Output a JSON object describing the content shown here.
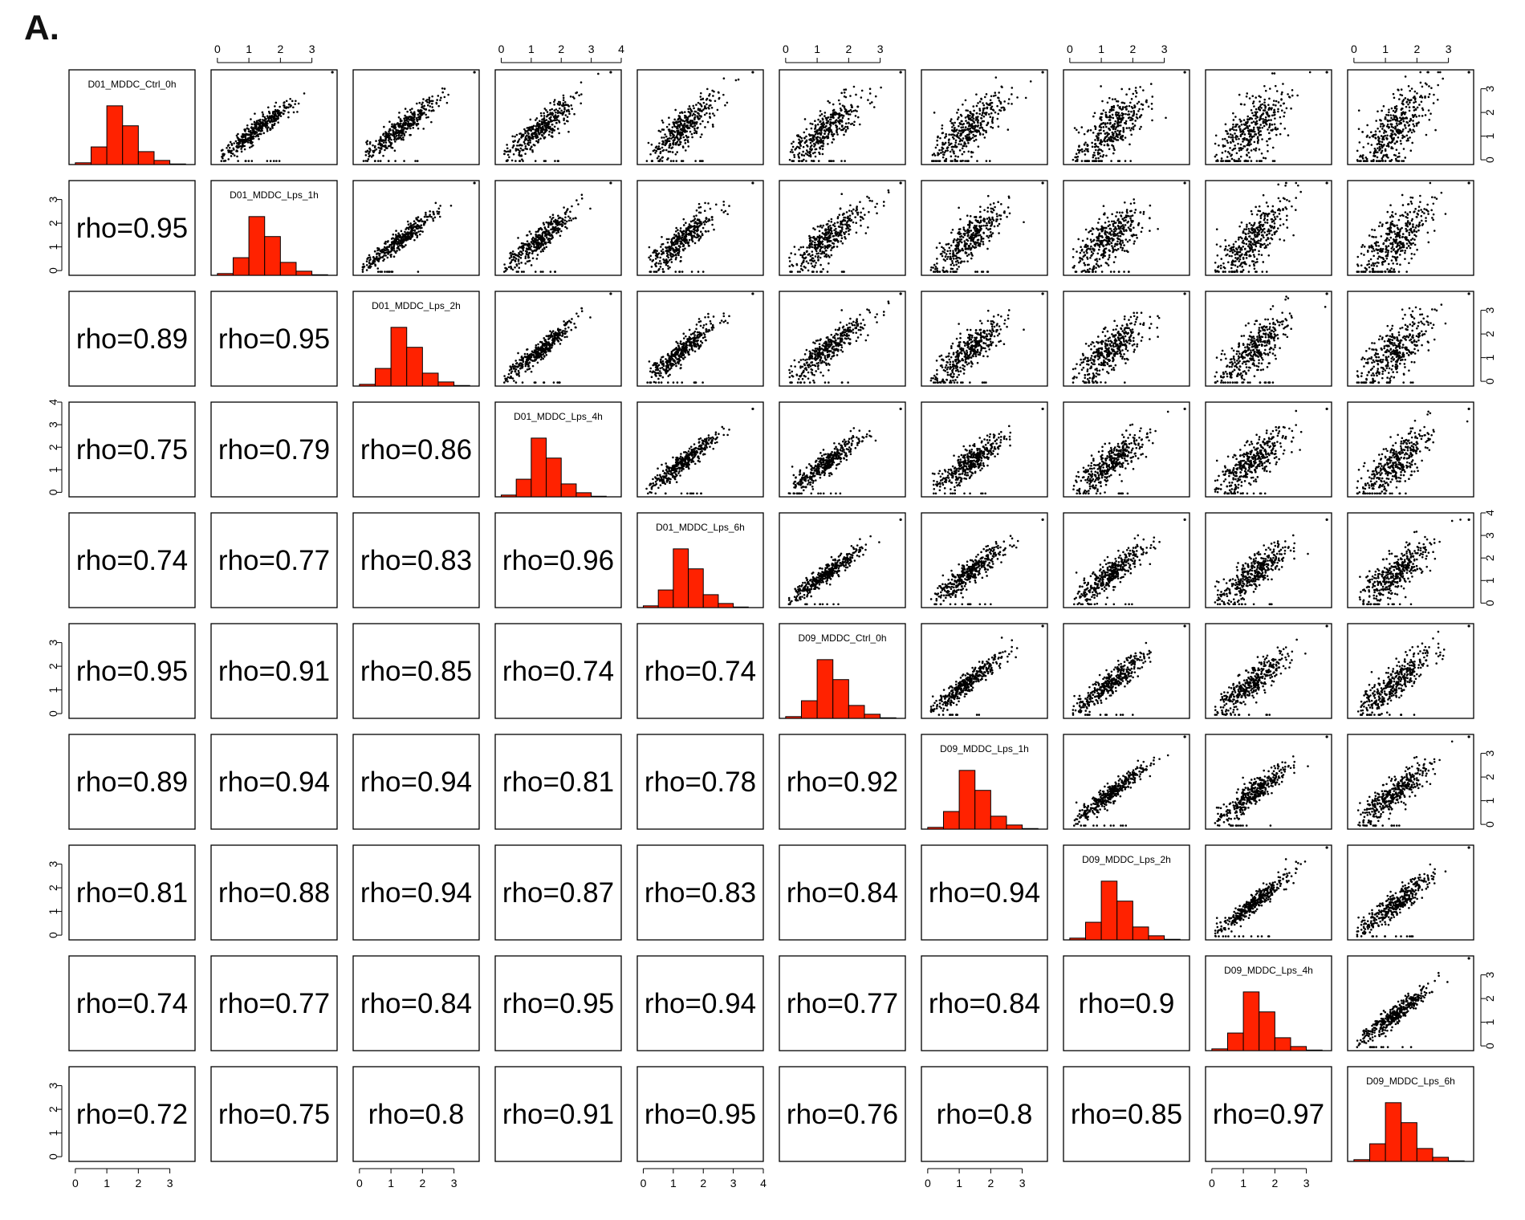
{
  "figure": {
    "panel_label": "A."
  },
  "chart_data": {
    "type": "scatter",
    "kind": "pairs-matrix",
    "panels": {
      "diagonal": "histogram",
      "upper": "scatter",
      "lower": "spearman-correlation-text"
    },
    "variables": [
      "D01_MDDC_Ctrl_0h",
      "D01_MDDC_Lps_1h",
      "D01_MDDC_Lps_2h",
      "D01_MDDC_Lps_4h",
      "D01_MDDC_Lps_6h",
      "D09_MDDC_Ctrl_0h",
      "D09_MDDC_Lps_1h",
      "D09_MDDC_Lps_2h",
      "D09_MDDC_Lps_4h",
      "D09_MDDC_Lps_6h"
    ],
    "axis_ticks": [
      [
        "0",
        "1",
        "2",
        "3"
      ],
      [
        "0",
        "1",
        "2",
        "3"
      ],
      [
        "0",
        "1",
        "2",
        "3"
      ],
      [
        "0",
        "1",
        "2",
        "3",
        "4"
      ],
      [
        "0",
        "1",
        "2",
        "3",
        "4"
      ],
      [
        "0",
        "1",
        "2",
        "3"
      ],
      [
        "0",
        "1",
        "2",
        "3"
      ],
      [
        "0",
        "1",
        "2",
        "3"
      ],
      [
        "0",
        "1",
        "2",
        "3"
      ],
      [
        "0",
        "1",
        "2",
        "3"
      ]
    ],
    "axis_ranges": [
      [
        -0.2,
        3.8
      ],
      [
        -0.2,
        3.8
      ],
      [
        -0.2,
        3.8
      ],
      [
        -0.2,
        4.0
      ],
      [
        -0.2,
        4.0
      ],
      [
        -0.2,
        3.8
      ],
      [
        -0.2,
        3.8
      ],
      [
        -0.2,
        3.8
      ],
      [
        -0.2,
        3.8
      ],
      [
        -0.2,
        3.8
      ]
    ],
    "histogram_bins": [
      0,
      0.5,
      1.0,
      1.5,
      2.0,
      2.5,
      3.0,
      3.5,
      4.0
    ],
    "histogram_relative_heights": [
      0.03,
      0.3,
      1.0,
      0.66,
      0.22,
      0.07,
      0.01,
      0.0
    ],
    "histogram_color": "#ff2200",
    "correlation_label_prefix": "rho=",
    "correlations": [
      {
        "row": 2,
        "col": 1,
        "rho": "0.95"
      },
      {
        "row": 3,
        "col": 1,
        "rho": "0.89"
      },
      {
        "row": 3,
        "col": 2,
        "rho": "0.95"
      },
      {
        "row": 4,
        "col": 1,
        "rho": "0.75"
      },
      {
        "row": 4,
        "col": 2,
        "rho": "0.79"
      },
      {
        "row": 4,
        "col": 3,
        "rho": "0.86"
      },
      {
        "row": 5,
        "col": 1,
        "rho": "0.74"
      },
      {
        "row": 5,
        "col": 2,
        "rho": "0.77"
      },
      {
        "row": 5,
        "col": 3,
        "rho": "0.83"
      },
      {
        "row": 5,
        "col": 4,
        "rho": "0.96"
      },
      {
        "row": 6,
        "col": 1,
        "rho": "0.95"
      },
      {
        "row": 6,
        "col": 2,
        "rho": "0.91"
      },
      {
        "row": 6,
        "col": 3,
        "rho": "0.85"
      },
      {
        "row": 6,
        "col": 4,
        "rho": "0.74"
      },
      {
        "row": 6,
        "col": 5,
        "rho": "0.74"
      },
      {
        "row": 7,
        "col": 1,
        "rho": "0.89"
      },
      {
        "row": 7,
        "col": 2,
        "rho": "0.94"
      },
      {
        "row": 7,
        "col": 3,
        "rho": "0.94"
      },
      {
        "row": 7,
        "col": 4,
        "rho": "0.81"
      },
      {
        "row": 7,
        "col": 5,
        "rho": "0.78"
      },
      {
        "row": 7,
        "col": 6,
        "rho": "0.92"
      },
      {
        "row": 8,
        "col": 1,
        "rho": "0.81"
      },
      {
        "row": 8,
        "col": 2,
        "rho": "0.88"
      },
      {
        "row": 8,
        "col": 3,
        "rho": "0.94"
      },
      {
        "row": 8,
        "col": 4,
        "rho": "0.87"
      },
      {
        "row": 8,
        "col": 5,
        "rho": "0.83"
      },
      {
        "row": 8,
        "col": 6,
        "rho": "0.84"
      },
      {
        "row": 8,
        "col": 7,
        "rho": "0.94"
      },
      {
        "row": 9,
        "col": 1,
        "rho": "0.74"
      },
      {
        "row": 9,
        "col": 2,
        "rho": "0.77"
      },
      {
        "row": 9,
        "col": 3,
        "rho": "0.84"
      },
      {
        "row": 9,
        "col": 4,
        "rho": "0.95"
      },
      {
        "row": 9,
        "col": 5,
        "rho": "0.94"
      },
      {
        "row": 9,
        "col": 6,
        "rho": "0.77"
      },
      {
        "row": 9,
        "col": 7,
        "rho": "0.84"
      },
      {
        "row": 9,
        "col": 8,
        "rho": "0.9"
      },
      {
        "row": 10,
        "col": 1,
        "rho": "0.72"
      },
      {
        "row": 10,
        "col": 2,
        "rho": "0.75"
      },
      {
        "row": 10,
        "col": 3,
        "rho": "0.8"
      },
      {
        "row": 10,
        "col": 4,
        "rho": "0.91"
      },
      {
        "row": 10,
        "col": 5,
        "rho": "0.95"
      },
      {
        "row": 10,
        "col": 6,
        "rho": "0.76"
      },
      {
        "row": 10,
        "col": 7,
        "rho": "0.8"
      },
      {
        "row": 10,
        "col": 8,
        "rho": "0.85"
      },
      {
        "row": 10,
        "col": 9,
        "rho": "0.97"
      }
    ]
  }
}
